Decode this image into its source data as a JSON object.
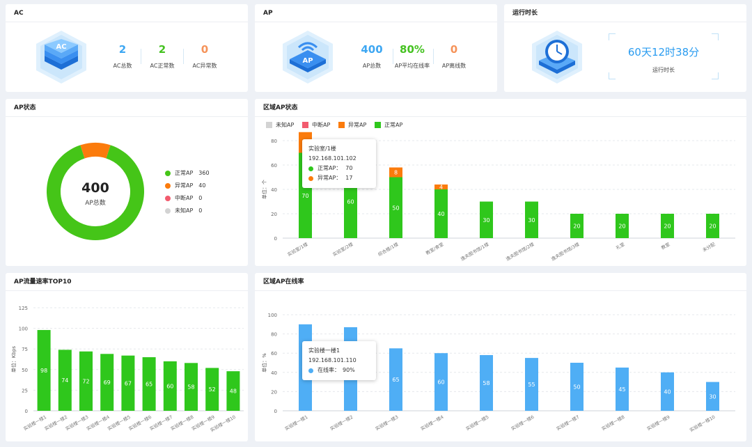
{
  "ac": {
    "title": "AC",
    "stats": [
      {
        "value": "2",
        "label": "AC总数",
        "color": "#3ea7f2"
      },
      {
        "value": "2",
        "label": "AC正常数",
        "color": "#45c221"
      },
      {
        "value": "0",
        "label": "AC异常数",
        "color": "#f5935a"
      }
    ]
  },
  "ap": {
    "title": "AP",
    "stats": [
      {
        "value": "400",
        "label": "AP总数",
        "color": "#3ea7f2"
      },
      {
        "value": "80%",
        "label": "AP平均在线率",
        "color": "#45c221"
      },
      {
        "value": "0",
        "label": "AP离线数",
        "color": "#f5935a"
      }
    ]
  },
  "runtime": {
    "title": "运行时长",
    "value": "60天12时38分",
    "label": "运行时长"
  },
  "ap_status": {
    "title": "AP状态",
    "center_value": "400",
    "center_label": "AP总数",
    "legend": [
      {
        "label": "正常AP",
        "value": "360",
        "color": "#45c518"
      },
      {
        "label": "异常AP",
        "value": "40",
        "color": "#fb7b0c"
      },
      {
        "label": "中断AP",
        "value": "0",
        "color": "#f25b6e"
      },
      {
        "label": "未知AP",
        "value": "0",
        "color": "#d3d3d3"
      }
    ]
  },
  "region_status": {
    "title": "区域AP状态",
    "legend": [
      {
        "label": "未知AP",
        "color": "#d3d3d3"
      },
      {
        "label": "中断AP",
        "color": "#f25b6e"
      },
      {
        "label": "异常AP",
        "color": "#fb7b0c"
      },
      {
        "label": "正常AP",
        "color": "#2fc71c"
      }
    ],
    "tooltip": {
      "title": "实验室/1楼",
      "ip": "192.168.101.102",
      "rows": [
        {
          "label": "正常AP：",
          "value": "70",
          "color": "#2fc71c"
        },
        {
          "label": "异常AP：",
          "value": "17",
          "color": "#fb7b0c"
        }
      ]
    }
  },
  "traffic": {
    "title": "AP流量速率TOP10"
  },
  "region_online": {
    "title": "区域AP在线率",
    "tooltip": {
      "title": "实验楼一楼1",
      "ip": "192.168.101.110",
      "row_label": "在线率：",
      "row_value": "90%",
      "color": "#4faef5"
    }
  },
  "chart_data": [
    {
      "id": "region_status",
      "type": "bar",
      "stacked": true,
      "ylabel": "单位：个",
      "ylim": [
        0,
        80
      ],
      "yticks": [
        0,
        20,
        40,
        60,
        80
      ],
      "categories": [
        "实验室/1楼",
        "实验室/2楼",
        "综合楼/1楼",
        "教室/食堂",
        "逸夫图书馆/1楼",
        "逸夫图书馆/2楼",
        "逸夫图书馆/3楼",
        "礼堂",
        "教室",
        "未分配"
      ],
      "series": [
        {
          "name": "正常AP",
          "values": [
            70,
            60,
            50,
            40,
            30,
            30,
            20,
            20,
            20,
            20
          ],
          "color": "#2fc71c"
        },
        {
          "name": "异常AP",
          "values": [
            17,
            0,
            8,
            4,
            0,
            0,
            0,
            0,
            0,
            0
          ],
          "color": "#fb7b0c"
        }
      ]
    },
    {
      "id": "traffic",
      "type": "bar",
      "ylabel": "单位：Kbps",
      "ylim": [
        0,
        125
      ],
      "yticks": [
        0,
        25,
        50,
        75,
        100,
        125
      ],
      "categories": [
        "实验楼一楼1",
        "实验楼一楼2",
        "实验楼一楼3",
        "实验楼一楼4",
        "实验楼一楼5",
        "实验楼一楼6",
        "实验楼一楼7",
        "实验楼一楼8",
        "实验楼一楼9",
        "实验楼一楼10"
      ],
      "values": [
        98,
        74,
        72,
        69,
        67,
        65,
        60,
        58,
        52,
        48
      ],
      "color": "#2fc71c"
    },
    {
      "id": "region_online",
      "type": "bar",
      "ylabel": "单位：%",
      "ylim": [
        0,
        100
      ],
      "yticks": [
        0,
        20,
        40,
        60,
        80,
        100
      ],
      "categories": [
        "实验楼一楼1",
        "实验楼一楼2",
        "实验楼一楼3",
        "实验楼一楼4",
        "实验楼一楼5",
        "实验楼一楼6",
        "实验楼一楼7",
        "实验楼一楼8",
        "实验楼一楼9",
        "实验楼一楼10"
      ],
      "values": [
        90,
        87,
        65,
        60,
        58,
        55,
        50,
        45,
        40,
        30
      ],
      "color": "#4faef5"
    },
    {
      "id": "ap_status_donut",
      "type": "pie",
      "categories": [
        "正常AP",
        "异常AP",
        "中断AP",
        "未知AP"
      ],
      "values": [
        360,
        40,
        0,
        0
      ]
    }
  ]
}
